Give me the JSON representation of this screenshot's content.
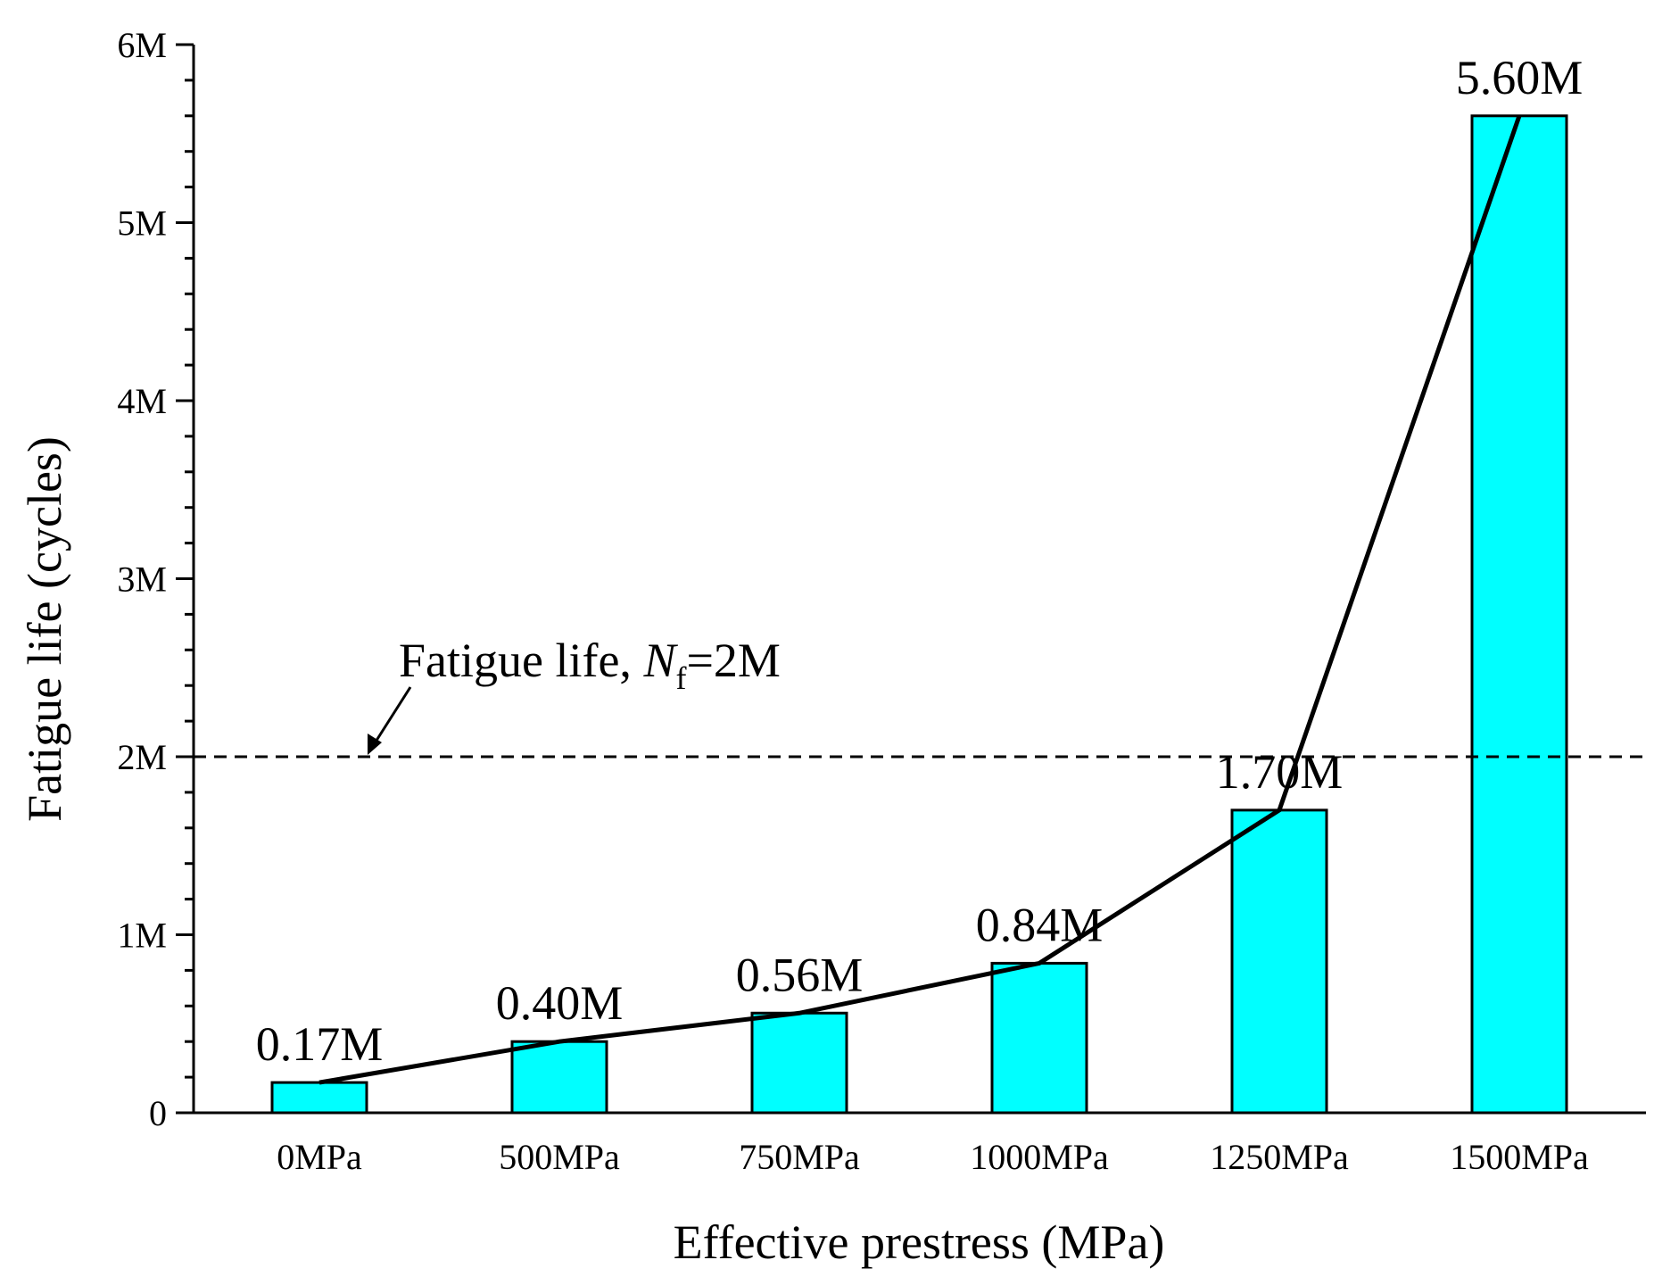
{
  "chart_data": {
    "type": "bar",
    "title": "",
    "xlabel": "Effective prestress (MPa)",
    "ylabel": "Fatigue life (cycles)",
    "categories": [
      "0MPa",
      "500MPa",
      "750MPa",
      "1000MPa",
      "1250MPa",
      "1500MPa"
    ],
    "values": [
      0.17,
      0.4,
      0.56,
      0.84,
      1.7,
      5.6
    ],
    "data_labels": [
      "0.17M",
      "0.40M",
      "0.56M",
      "0.84M",
      "1.70M",
      "5.60M"
    ],
    "ylim": [
      0,
      6
    ],
    "y_ticks": [
      0,
      1,
      2,
      3,
      4,
      5,
      6
    ],
    "y_tick_labels": [
      "0",
      "1M",
      "2M",
      "3M",
      "4M",
      "5M",
      "6M"
    ],
    "trend_line": {
      "type": "line",
      "values": [
        0.17,
        0.4,
        0.56,
        0.84,
        1.7,
        5.6
      ]
    },
    "reference_line": {
      "value": 2,
      "style": "dashed",
      "label_prefix": "Fatigue life, ",
      "label_symbol": "N",
      "label_subscript": "f",
      "label_suffix": "=2M"
    },
    "grid": false,
    "legend": "none",
    "colors": {
      "bar_fill": "#00ffff",
      "bar_stroke": "#000000",
      "line": "#000000",
      "axis": "#000000"
    }
  }
}
